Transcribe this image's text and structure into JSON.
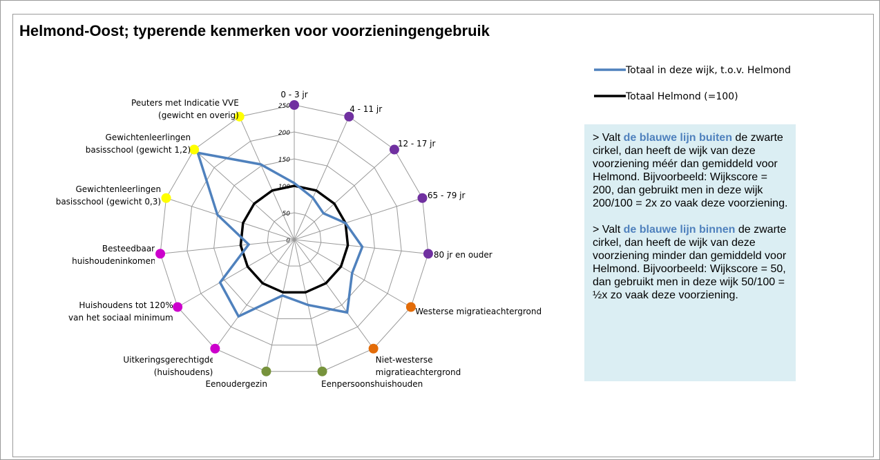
{
  "chart_data": {
    "type": "radar",
    "title": "Helmond-Oost; typerende kenmerken voor voorzieningengebruik",
    "categories": [
      "0 - 3 jr",
      "4 - 11 jr",
      "12 - 17 jr",
      "65 - 79 jr",
      "80 jr en ouder",
      "Westerse migratieachtergrond",
      "Niet-westerse migratieachtergrond",
      "Eenpersoonshuishouden",
      "Eenoudergezin",
      "Uitkeringsgerechtigden (huishoudens)",
      "Huishoudens tot 120% van het sociaal minimum",
      "Besteedbaar huishoudeninkomen",
      "Gewichtenleerlingen basisschool (gewicht 0,3)",
      "Gewichtenleerlingen basisschool (gewicht 1,2)",
      "Peuters met Indicatie VVE (gewicht en overig)"
    ],
    "point_colors": [
      "#7030a0",
      "#7030a0",
      "#7030a0",
      "#7030a0",
      "#7030a0",
      "#e36c09",
      "#e36c09",
      "#77933c",
      "#77933c",
      "#cc00cc",
      "#cc00cc",
      "#cc00cc",
      "#ffff00",
      "#ffff00",
      "#ffff00"
    ],
    "series": [
      {
        "name": "Totaal in deze wijk, t.o.v. Helmond",
        "color": "#4f81bd",
        "values": [
          105,
          85,
          73,
          100,
          127,
          124,
          167,
          124,
          106,
          176,
          159,
          85,
          150,
          241,
          153
        ]
      },
      {
        "name": "Totaal Helmond (=100)",
        "color": "#000000",
        "values": [
          100,
          100,
          100,
          100,
          100,
          100,
          100,
          100,
          100,
          100,
          100,
          100,
          100,
          100,
          100
        ]
      }
    ],
    "ylim": [
      0,
      250
    ],
    "yticks": [
      0,
      50,
      100,
      150,
      200,
      250
    ],
    "grid": true,
    "legend": "right",
    "note": {
      "paragraphs": [
        [
          "> Valt ",
          "de blauwe lijn buiten",
          " de zwarte cirkel, dan heeft de wijk van deze voorziening méér dan gemiddeld voor Helmond. Bijvoorbeeld: Wijkscore = 200, dan gebruikt men in deze wijk 200/100 = 2x zo vaak deze voorziening."
        ],
        [
          "> Valt ",
          "de blauwe lijn binnen",
          " de zwarte cirkel, dan heeft de wijk van deze voorziening minder dan gemiddeld voor Helmond. Bijvoorbeeld: Wijkscore = 50, dan gebruikt men in deze wijk 50/100 = ½x zo vaak deze voorziening."
        ]
      ]
    }
  }
}
